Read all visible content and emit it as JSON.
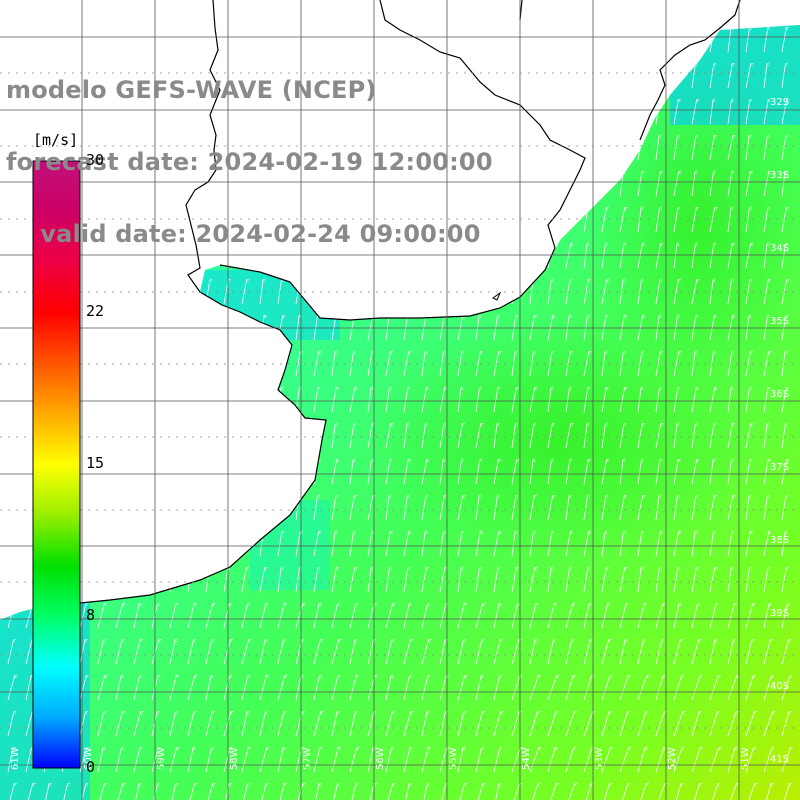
{
  "title": {
    "line1": "modelo GEFS-WAVE (NCEP)",
    "line2": "forecast date: 2024-02-19 12:00:00",
    "line3": "    valid date: 2024-02-24 09:00:00"
  },
  "colorbar": {
    "unit": "[m/s]",
    "range": [
      0,
      30
    ],
    "ticks": [
      "30",
      "22",
      "15",
      "8",
      "0"
    ],
    "colors": [
      "#0000ff",
      "#00aaff",
      "#00ffff",
      "#00ff66",
      "#00e000",
      "#99ee00",
      "#ffff00",
      "#ffaa00",
      "#ff5500",
      "#ff0000",
      "#ee0044",
      "#cc0066",
      "#c0107a"
    ]
  },
  "map": {
    "lon_labels": [
      "61W",
      "60W",
      "59W",
      "58W",
      "57W",
      "56W",
      "55W",
      "54W",
      "53W",
      "52W",
      "51W"
    ],
    "lat_labels": [
      "32S",
      "33S",
      "34S",
      "35S",
      "36S",
      "37S",
      "38S",
      "39S",
      "40S",
      "41S"
    ],
    "wind_direction": "from south-southwest"
  }
}
